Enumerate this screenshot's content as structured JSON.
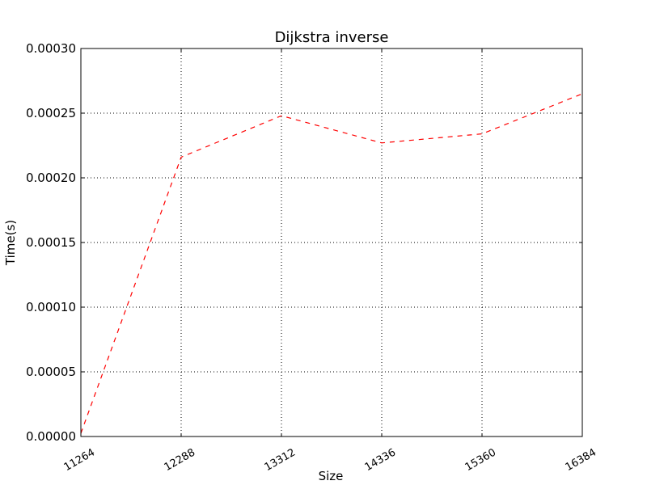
{
  "chart_data": {
    "type": "line",
    "title": "Dijkstra inverse",
    "xlabel": "Size",
    "ylabel": "Time(s)",
    "x": [
      11264,
      12288,
      13312,
      14336,
      15360,
      16384
    ],
    "xlim": [
      11264,
      16384
    ],
    "ylim": [
      0,
      0.0003
    ],
    "x_tick_labels": [
      "11264",
      "12288",
      "13312",
      "14336",
      "15360",
      "16384"
    ],
    "y_ticks": [
      0,
      5e-05,
      0.0001,
      0.00015,
      0.0002,
      0.00025,
      0.0003
    ],
    "y_tick_labels": [
      "0.00000",
      "0.00005",
      "0.00010",
      "0.00015",
      "0.00020",
      "0.00025",
      "0.00030"
    ],
    "grid": true,
    "series": [
      {
        "values": [
          2.5e-06,
          0.000216,
          0.000248,
          0.000227,
          0.000234,
          0.000265
        ],
        "color": "#ff0000",
        "line_style": "dashed"
      }
    ]
  }
}
